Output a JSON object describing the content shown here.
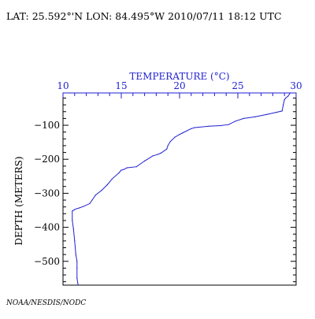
{
  "header": {
    "location_time": "LAT: 25.592°'N LON: 84.495°W 2010/07/11 18:12 UTC"
  },
  "credit": "NOAA/NESDIS/NODC",
  "colors": {
    "temperature_axis": "#1f1fd1",
    "profile_line": "#1f1fd1",
    "depth_axis": "#000000"
  },
  "chart_data": {
    "type": "line",
    "title": "",
    "xlabel": "TEMPERATURE (°C)",
    "ylabel": "DEPTH (METERS)",
    "x_axis_position": "top",
    "xlim": [
      10,
      30
    ],
    "ylim": [
      -570,
      -5
    ],
    "x_ticks": [
      10,
      15,
      20,
      25,
      30
    ],
    "y_ticks": [
      -100,
      -200,
      -300,
      -400,
      -500
    ],
    "grid": false,
    "legend": "none",
    "series": [
      {
        "x": [
          29.5,
          29.3,
          29.1,
          29.0,
          28.9,
          28.8,
          28.3,
          27.5,
          26.5,
          25.5,
          24.8,
          24.2,
          23.5,
          22.5,
          21.3,
          21.0,
          20.3,
          20.0,
          19.6,
          19.2,
          19.0,
          18.9,
          18.4,
          18.1,
          17.7,
          17.0,
          16.3,
          15.5,
          15.2,
          15.0,
          14.8,
          14.2,
          13.8,
          13.3,
          12.8,
          12.5,
          12.3,
          11.8,
          11.4,
          11.2,
          11.0,
          10.8,
          10.8,
          10.9,
          11.0,
          11.1,
          11.2,
          11.2,
          11.2,
          11.3
        ],
        "y": [
          -5,
          -15,
          -20,
          -25,
          -40,
          -58,
          -62,
          -68,
          -75,
          -80,
          -88,
          -98,
          -101,
          -103,
          -107,
          -110,
          -122,
          -127,
          -135,
          -148,
          -160,
          -170,
          -182,
          -186,
          -190,
          -205,
          -222,
          -225,
          -230,
          -232,
          -240,
          -258,
          -275,
          -292,
          -305,
          -320,
          -330,
          -338,
          -343,
          -345,
          -348,
          -352,
          -380,
          -405,
          -440,
          -480,
          -500,
          -520,
          -550,
          -570
        ]
      }
    ]
  }
}
